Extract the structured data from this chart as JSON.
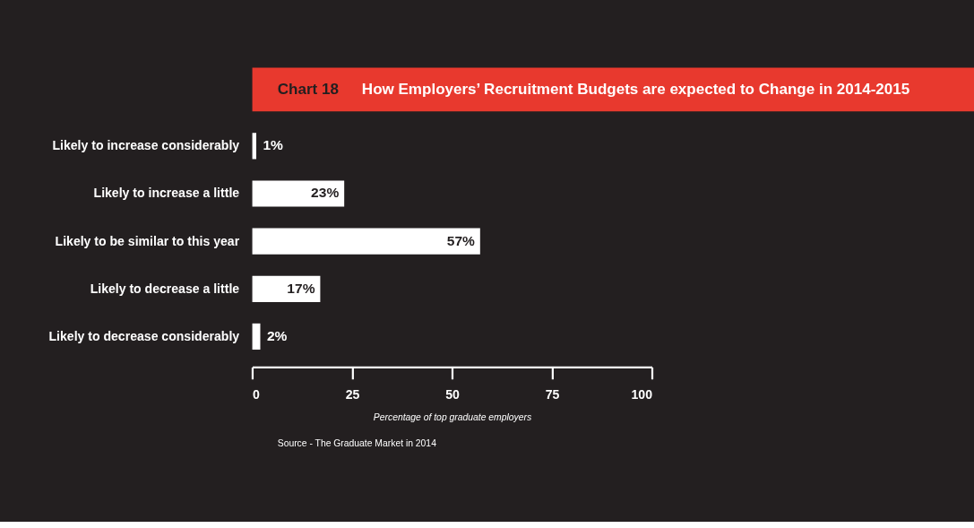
{
  "chart_data": {
    "type": "bar",
    "orientation": "horizontal",
    "title": "Chart 18",
    "subtitle": "How Employers’ Recruitment Budgets are expected to Change in 2014-2015",
    "categories": [
      "Likely to increase considerably",
      "Likely to increase a little",
      "Likely to be similar to this year",
      "Likely to decrease a little",
      "Likely to decrease considerably"
    ],
    "values": [
      1,
      23,
      57,
      17,
      2
    ],
    "value_labels": [
      "1%",
      "23%",
      "57%",
      "17%",
      "2%"
    ],
    "color": "#ffffff",
    "xlim": [
      0,
      100
    ],
    "xticks": [
      0,
      25,
      50,
      75,
      100
    ],
    "xlabel": "Percentage of top graduate employers",
    "grid": false,
    "annotations": [
      "Source - The Graduate Market in 2014"
    ]
  }
}
